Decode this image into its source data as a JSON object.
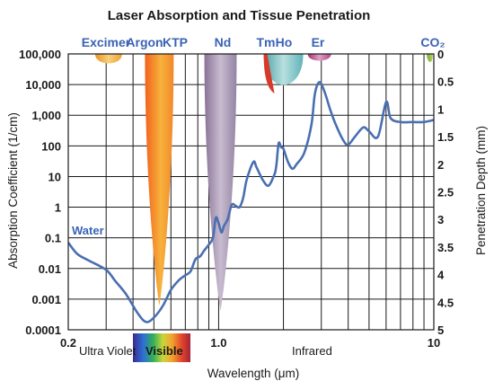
{
  "chart_data": {
    "type": "line",
    "title": "Laser Absorption and Tissue Penetration",
    "xlabel": "Wavelength (μm)",
    "ylabel": "Absorption Coefficient (1/cm)",
    "y2label": "Penetration Depth (mm)",
    "x_scale": "log",
    "y_scale": "log",
    "xlim": [
      0.2,
      10
    ],
    "ylim": [
      0.0001,
      100000
    ],
    "x_ticks": [
      "0.2",
      "1.0",
      "10"
    ],
    "y_ticks": [
      "100,000",
      "10,000",
      "1,000",
      "100",
      "10",
      "1",
      "0.1",
      "0.01",
      "0.001",
      "0.0001"
    ],
    "y2_ticks": [
      "0",
      "0.5",
      "1",
      "1.5",
      "2",
      "2.5",
      "3",
      "3.5",
      "4",
      "4.5",
      "5"
    ],
    "regions": [
      "Ultra Violet",
      "Visible",
      "Infrared"
    ],
    "lasers": [
      {
        "name": "Excimer",
        "wavelength": 0.308,
        "color": "#f2a93b"
      },
      {
        "name": "Argon",
        "wavelength": 0.488,
        "color": "#f0872a"
      },
      {
        "name": "KTP",
        "wavelength": 0.532,
        "color": "#f5a030"
      },
      {
        "name": "Nd",
        "wavelength": 1.064,
        "color": "#9a86ab"
      },
      {
        "name": "Tm",
        "wavelength": 1.94,
        "color": "#6fb8bc"
      },
      {
        "name": "Ho",
        "wavelength": 2.1,
        "color": "#6fb8bc"
      },
      {
        "name": "Er",
        "wavelength": 2.94,
        "color": "#b54a8e"
      },
      {
        "name": "CO₂",
        "wavelength": 10.6,
        "color": "#8bb83a"
      }
    ],
    "series": [
      {
        "name": "Water",
        "color": "#4a6fb0",
        "points": [
          [
            0.2,
            0.07
          ],
          [
            0.22,
            0.03
          ],
          [
            0.25,
            0.018
          ],
          [
            0.3,
            0.009
          ],
          [
            0.33,
            0.004
          ],
          [
            0.37,
            0.0015
          ],
          [
            0.42,
            0.00035
          ],
          [
            0.46,
            0.00018
          ],
          [
            0.5,
            0.00025
          ],
          [
            0.55,
            0.0006
          ],
          [
            0.6,
            0.002
          ],
          [
            0.65,
            0.004
          ],
          [
            0.7,
            0.006
          ],
          [
            0.74,
            0.008
          ],
          [
            0.78,
            0.02
          ],
          [
            0.82,
            0.025
          ],
          [
            0.86,
            0.04
          ],
          [
            0.9,
            0.06
          ],
          [
            0.94,
            0.1
          ],
          [
            0.97,
            0.45
          ],
          [
            1.0,
            0.3
          ],
          [
            1.03,
            0.15
          ],
          [
            1.06,
            0.25
          ],
          [
            1.1,
            0.4
          ],
          [
            1.15,
            1.2
          ],
          [
            1.2,
            1.1
          ],
          [
            1.25,
            1.0
          ],
          [
            1.3,
            2
          ],
          [
            1.35,
            8
          ],
          [
            1.45,
            30
          ],
          [
            1.5,
            20
          ],
          [
            1.6,
            8
          ],
          [
            1.7,
            5
          ],
          [
            1.8,
            10
          ],
          [
            1.85,
            20
          ],
          [
            1.9,
            120
          ],
          [
            1.95,
            90
          ],
          [
            2.0,
            80
          ],
          [
            2.1,
            30
          ],
          [
            2.2,
            18
          ],
          [
            2.3,
            25
          ],
          [
            2.5,
            60
          ],
          [
            2.7,
            500
          ],
          [
            2.8,
            5000
          ],
          [
            2.94,
            12000
          ],
          [
            3.1,
            6000
          ],
          [
            3.3,
            1500
          ],
          [
            3.5,
            500
          ],
          [
            3.8,
            150
          ],
          [
            4.0,
            110
          ],
          [
            4.3,
            200
          ],
          [
            4.7,
            400
          ],
          [
            5.0,
            300
          ],
          [
            5.5,
            200
          ],
          [
            6.0,
            2700
          ],
          [
            6.3,
            800
          ],
          [
            7.0,
            600
          ],
          [
            8.0,
            600
          ],
          [
            9.0,
            600
          ],
          [
            10.0,
            700
          ]
        ]
      }
    ]
  }
}
